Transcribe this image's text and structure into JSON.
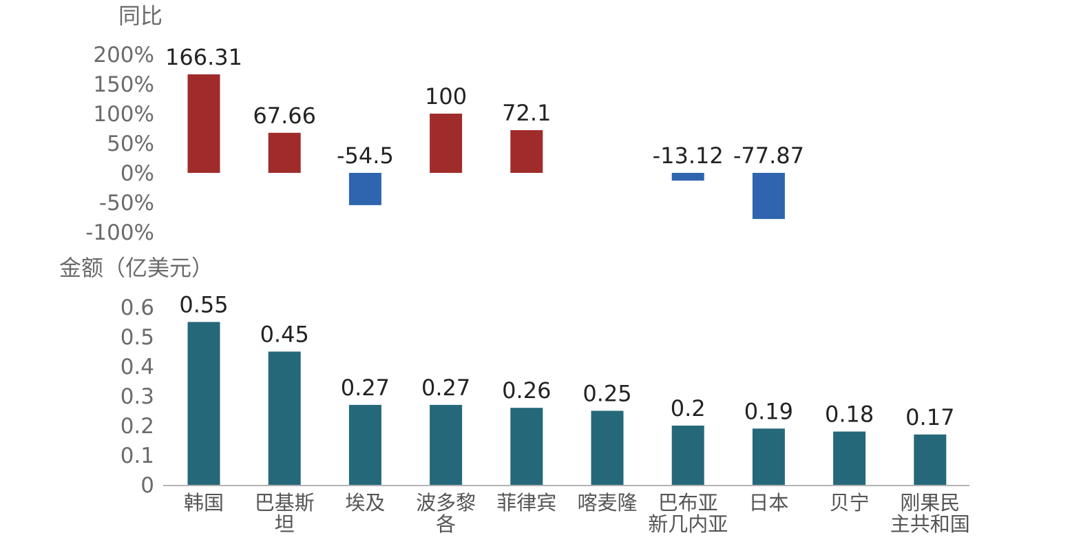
{
  "chart_data": [
    {
      "type": "bar",
      "ylabel": "同比",
      "ylim": [
        -100,
        200
      ],
      "yticks": [
        200,
        150,
        100,
        50,
        0,
        -50,
        -100
      ],
      "ytick_labels": [
        "200%",
        "150%",
        "100%",
        "50%",
        "0%",
        "-50%",
        "-100%"
      ],
      "categories": [
        "韩国",
        "巴基斯坦",
        "埃及",
        "波多黎各",
        "菲律宾",
        "喀麦隆",
        "巴布亚新几内亚",
        "日本",
        "贝宁",
        "刚果民主共和国"
      ],
      "values": [
        166.31,
        67.66,
        -54.5,
        100,
        72.1,
        null,
        -13.12,
        -77.87,
        null,
        null
      ],
      "data_labels": [
        "166.31",
        "67.66",
        "-54.5",
        "100",
        "72.1",
        "",
        "-13.12",
        "-77.87",
        "",
        ""
      ],
      "colors": {
        "positive": "#a02b2b",
        "negative": "#2f64ae"
      },
      "grid": false
    },
    {
      "type": "bar",
      "ylabel": "金额（亿美元）",
      "ylim": [
        0,
        0.6
      ],
      "yticks": [
        0.6,
        0.5,
        0.4,
        0.3,
        0.2,
        0.1,
        0
      ],
      "ytick_labels": [
        "0.6",
        "0.5",
        "0.4",
        "0.3",
        "0.2",
        "0.1",
        "0"
      ],
      "categories": [
        "韩国",
        "巴基斯坦",
        "埃及",
        "波多黎各",
        "菲律宾",
        "喀麦隆",
        "巴布亚新几内亚",
        "日本",
        "贝宁",
        "刚果民主共和国"
      ],
      "category_lines": [
        [
          "韩国"
        ],
        [
          "巴基斯",
          "坦"
        ],
        [
          "埃及"
        ],
        [
          "波多黎",
          "各"
        ],
        [
          "菲律宾"
        ],
        [
          "喀麦隆"
        ],
        [
          "巴布亚",
          "新几内亚"
        ],
        [
          "日本"
        ],
        [
          "贝宁"
        ],
        [
          "刚果民",
          "主共和国"
        ]
      ],
      "values": [
        0.55,
        0.45,
        0.27,
        0.27,
        0.26,
        0.25,
        0.2,
        0.19,
        0.18,
        0.17
      ],
      "data_labels": [
        "0.55",
        "0.45",
        "0.27",
        "0.27",
        "0.26",
        "0.25",
        "0.2",
        "0.19",
        "0.18",
        "0.17"
      ],
      "colors": {
        "bar": "#25687a"
      },
      "grid": false
    }
  ]
}
